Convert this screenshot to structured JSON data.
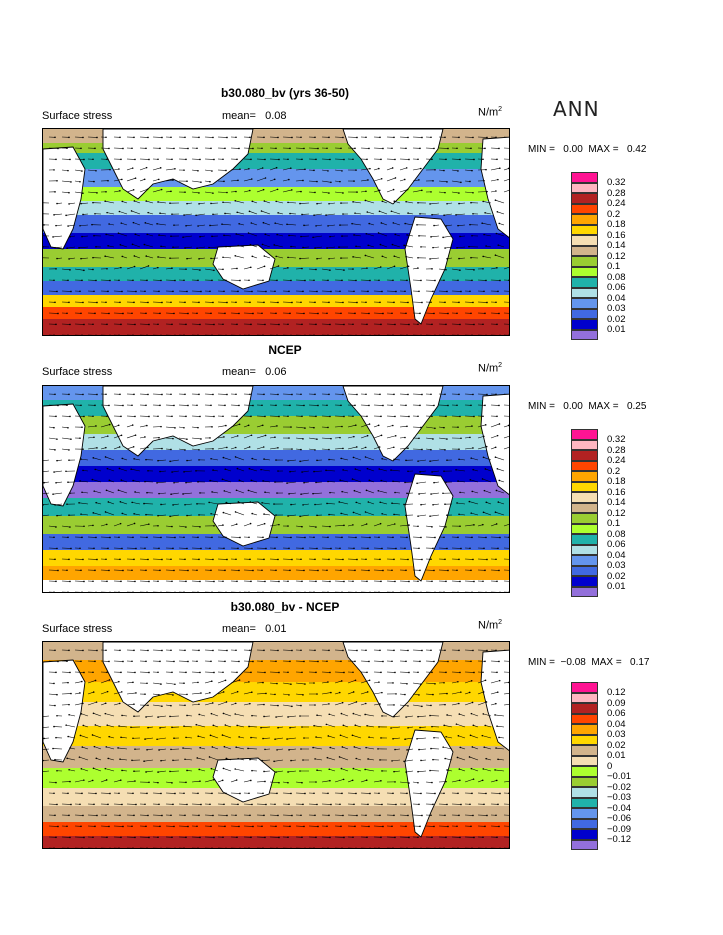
{
  "season": "ANN",
  "panels": [
    {
      "title": "b30.080_bv (yrs 36-50)",
      "variable": "Surface stress",
      "mean_label": "mean=",
      "mean_value": "0.08",
      "units_base": "N/m",
      "units_exp": "2",
      "min_label": "MIN =",
      "min_value": "0.00",
      "max_label": "MAX =",
      "max_value": "0.42",
      "legend": [
        "0.32",
        "0.28",
        "0.24",
        "0.2",
        "0.18",
        "0.16",
        "0.14",
        "0.12",
        "0.1",
        "0.08",
        "0.06",
        "0.04",
        "0.03",
        "0.02",
        "0.01"
      ],
      "legend_colors": [
        "#ff1493",
        "#ffb6c1",
        "#b22222",
        "#ff4500",
        "#ffa500",
        "#ffd700",
        "#f5deb3",
        "#d2b48c",
        "#9acd32",
        "#adff2f",
        "#20b2aa",
        "#b0e0e6",
        "#6495ed",
        "#4169e1",
        "#0000cd",
        "#9370db"
      ]
    },
    {
      "title": "NCEP",
      "variable": "Surface stress",
      "mean_label": "mean=",
      "mean_value": "0.06",
      "units_base": "N/m",
      "units_exp": "2",
      "min_label": "MIN =",
      "min_value": "0.00",
      "max_label": "MAX =",
      "max_value": "0.25",
      "legend": [
        "0.32",
        "0.28",
        "0.24",
        "0.2",
        "0.18",
        "0.16",
        "0.14",
        "0.12",
        "0.1",
        "0.08",
        "0.06",
        "0.04",
        "0.03",
        "0.02",
        "0.01"
      ],
      "legend_colors": [
        "#ff1493",
        "#ffb6c1",
        "#b22222",
        "#ff4500",
        "#ffa500",
        "#ffd700",
        "#f5deb3",
        "#d2b48c",
        "#9acd32",
        "#adff2f",
        "#20b2aa",
        "#b0e0e6",
        "#6495ed",
        "#4169e1",
        "#0000cd",
        "#9370db"
      ]
    },
    {
      "title": "b30.080_bv - NCEP",
      "variable": "Surface stress",
      "mean_label": "mean=",
      "mean_value": "0.01",
      "units_base": "N/m",
      "units_exp": "2",
      "min_label": "MIN =",
      "min_value": "−0.08",
      "max_label": "MAX =",
      "max_value": "0.17",
      "legend": [
        "0.12",
        "0.09",
        "0.06",
        "0.04",
        "0.03",
        "0.02",
        "0.01",
        "0",
        "−0.01",
        "−0.02",
        "−0.03",
        "−0.04",
        "−0.06",
        "−0.09",
        "−0.12"
      ],
      "legend_colors": [
        "#ff1493",
        "#ffb6c1",
        "#b22222",
        "#ff4500",
        "#ffa500",
        "#ffd700",
        "#d2b48c",
        "#f5deb3",
        "#adff2f",
        "#9acd32",
        "#b0e0e6",
        "#20b2aa",
        "#6495ed",
        "#4169e1",
        "#0000cd",
        "#9370db"
      ]
    }
  ]
}
